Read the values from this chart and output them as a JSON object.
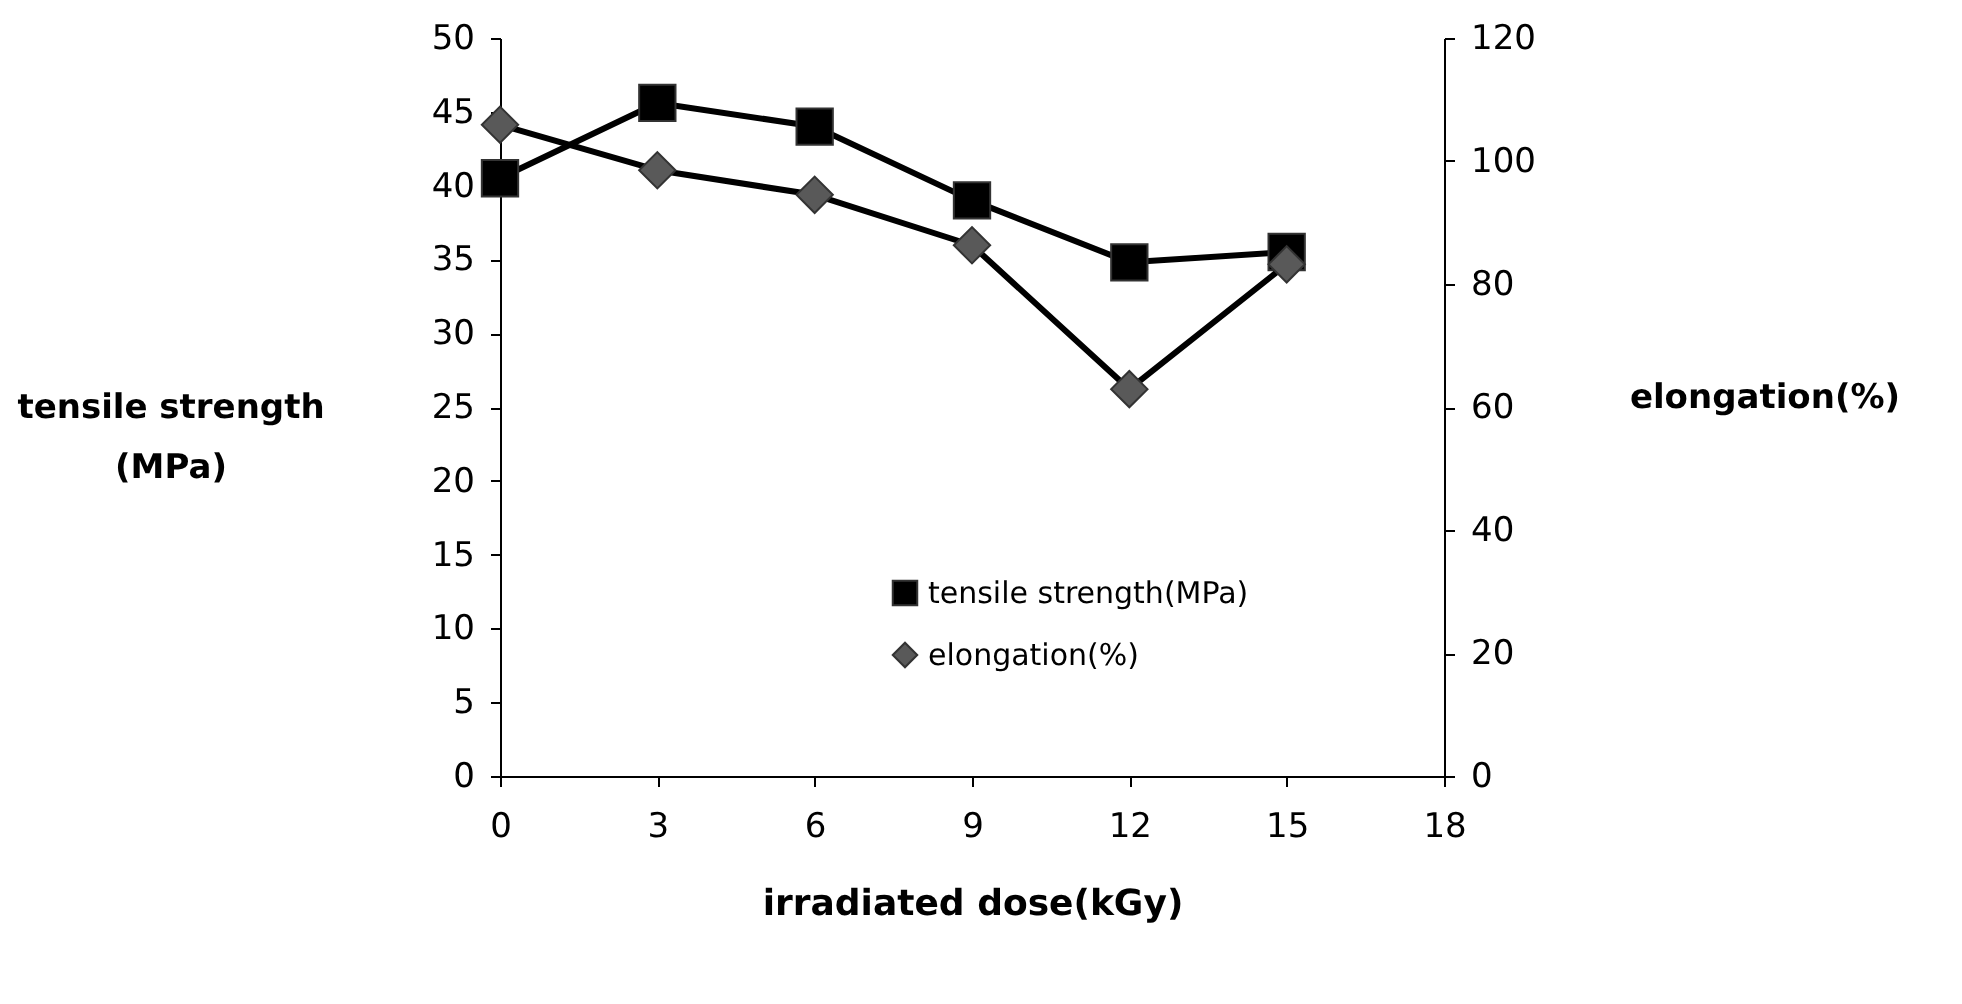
{
  "chart_data": {
    "type": "line",
    "xlabel": "irradiated dose(kGy)",
    "ylabel": "tensile strength\n(MPa)",
    "y2label": "elongation(%)",
    "x": [
      0,
      3,
      6,
      9,
      12,
      15
    ],
    "xlim": [
      0,
      18
    ],
    "xticks": [
      0,
      3,
      6,
      9,
      12,
      15,
      18
    ],
    "ylim": [
      0,
      50
    ],
    "yticks": [
      0,
      5,
      10,
      15,
      20,
      25,
      30,
      35,
      40,
      45,
      50
    ],
    "y2lim": [
      0,
      120
    ],
    "y2ticks": [
      0,
      20,
      40,
      60,
      80,
      100,
      120
    ],
    "grid": false,
    "legend": "bottom right",
    "line_style": "solid",
    "series": [
      {
        "name": "tensile strength(MPa)",
        "color": "#000000",
        "marker": "square",
        "values": [
          40.5,
          45.6,
          44.0,
          39.0,
          34.8,
          35.5
        ]
      },
      {
        "name": "elongation(%)",
        "color": "#595959",
        "marker": "diamond",
        "axis": "y2",
        "values": [
          105.9,
          98.5,
          94.5,
          86.3,
          62.9,
          83.2
        ]
      }
    ]
  }
}
